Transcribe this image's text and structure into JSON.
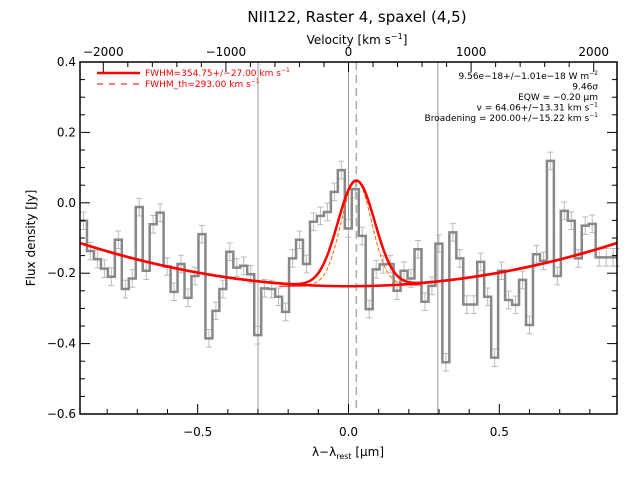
{
  "chart_data": {
    "type": "line",
    "title": "NII122, Raster 4, spaxel (4,5)",
    "xlabel": "λ−λrest [μm]",
    "xlabel_main": "λ−λ",
    "xlabel_sub": "rest",
    "xlabel_unit": " [μm]",
    "ylabel": "Flux density [Jy]",
    "top_xlabel": "Velocity [km s⁻¹]",
    "top_xlabel_main": "Velocity [km s",
    "top_xlabel_sup": "−1",
    "top_xlabel_end": "]",
    "xlim": [
      -0.89,
      0.89
    ],
    "ylim": [
      -0.6,
      0.4
    ],
    "top_xlim_kms": [
      -2190,
      2190
    ],
    "x_ticks": [
      -0.5,
      0.0,
      0.5
    ],
    "x_tick_labels": [
      "−0.5",
      "0.0",
      "0.5"
    ],
    "y_ticks": [
      -0.6,
      -0.4,
      -0.2,
      0.0,
      0.2,
      0.4
    ],
    "y_tick_labels": [
      "−0.6",
      "−0.4",
      "−0.2",
      "0.0",
      "0.2",
      "0.4"
    ],
    "top_ticks": [
      -2000,
      -1000,
      0,
      1000,
      2000
    ],
    "top_tick_labels": [
      "−2000",
      "−1000",
      "0",
      "1000",
      "2000"
    ],
    "grid": false,
    "spectrum": {
      "style": "histogram",
      "color": "#888888",
      "bin_start": -0.89,
      "bin_width": 0.0231,
      "error": 0.025,
      "values": [
        -0.051,
        -0.137,
        -0.16,
        -0.187,
        -0.21,
        -0.105,
        -0.245,
        -0.215,
        -0.012,
        -0.193,
        -0.061,
        -0.028,
        -0.181,
        -0.253,
        -0.174,
        -0.27,
        -0.208,
        -0.089,
        -0.385,
        -0.307,
        -0.245,
        -0.139,
        -0.184,
        -0.179,
        -0.203,
        -0.376,
        -0.243,
        -0.245,
        -0.267,
        -0.31,
        -0.158,
        -0.105,
        -0.174,
        -0.054,
        -0.037,
        -0.026,
        0.031,
        0.093,
        -0.073,
        0.039,
        -0.094,
        -0.302,
        -0.189,
        -0.175,
        -0.174,
        -0.25,
        -0.193,
        -0.215,
        -0.132,
        -0.281,
        -0.236,
        -0.116,
        -0.453,
        -0.084,
        -0.158,
        -0.289,
        -0.289,
        -0.168,
        -0.267,
        -0.44,
        -0.193,
        -0.276,
        -0.29,
        -0.219,
        -0.347,
        -0.146,
        -0.165,
        0.119,
        -0.208,
        -0.023,
        -0.051,
        -0.158,
        -0.065,
        -0.06,
        -0.155,
        -0.155,
        -0.155,
        -0.155
      ]
    },
    "fit": {
      "color": "#ff0000",
      "thin_color": "#ff6600",
      "continuum_min": -0.237,
      "continuum_curvature": 0.155,
      "line_center": 0.026,
      "amplitude": 0.3,
      "fwhm_um": 0.144,
      "fwhm_th_um": 0.119
    },
    "vertical_lines": {
      "solid": [
        -0.3,
        0.0,
        0.296
      ],
      "dashed": [
        0.026
      ],
      "color": "#999999"
    },
    "legend": {
      "placement": "top-left",
      "entries": [
        {
          "label": "FWHM=354.75+/−27.00 km s",
          "sup": "−1",
          "style": "solid"
        },
        {
          "label": "FWHM_th=293.00 km s",
          "sup": "−1",
          "style": "dashed"
        }
      ]
    },
    "annotations": {
      "placement": "top-right",
      "lines": [
        {
          "text": "9.56e−18+/−1.01e−18 W m",
          "sup": "−2"
        },
        {
          "text": "9.46σ",
          "sup": ""
        },
        {
          "text": "EQW = −0.20 μm",
          "sup": ""
        },
        {
          "text": "v = 64.06+/−13.31 km s",
          "sup": "−1"
        },
        {
          "text": "Broadening = 200.00+/−15.22 km s",
          "sup": "−1"
        }
      ]
    }
  }
}
